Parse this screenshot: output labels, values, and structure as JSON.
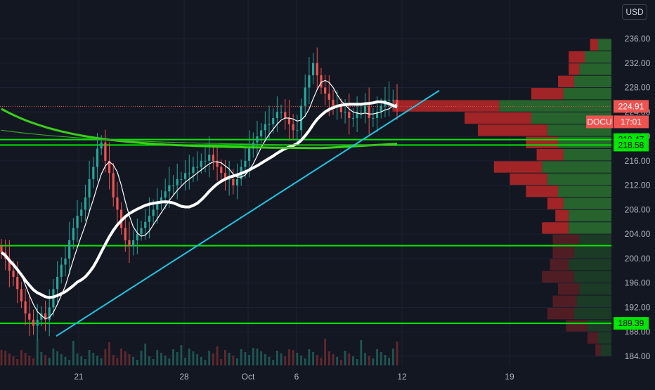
{
  "chart_data": {
    "type": "candlestick",
    "symbol": "DOCU",
    "currency": "USD",
    "last_price": 224.91,
    "countdown": "17:01",
    "y_ticks": [
      236,
      232,
      228,
      224,
      220,
      216,
      212,
      208,
      204,
      200,
      196,
      192,
      188,
      184
    ],
    "y_tick_labels": [
      "236.00",
      "232.00",
      "228.00",
      "224.00",
      "220.00",
      "216.00",
      "212.00",
      "208.00",
      "204.00",
      "200.00",
      "196.00",
      "192.00",
      "188.00",
      "184.00"
    ],
    "x_ticks": [
      "21",
      "28",
      "Oct",
      "6",
      "12",
      "19"
    ],
    "ylim": [
      182.5,
      238
    ],
    "closes": [
      201,
      200,
      198,
      197,
      195,
      193,
      191,
      190,
      189,
      190,
      191,
      190,
      192,
      195,
      197,
      199,
      200,
      203,
      205,
      207,
      208,
      210,
      213,
      215,
      218,
      219,
      216,
      214,
      210,
      208,
      205,
      203,
      202,
      203,
      204,
      205,
      206,
      207,
      208,
      209,
      210,
      211,
      212,
      212,
      213,
      213,
      214,
      214,
      215,
      215,
      216,
      216,
      217,
      216,
      215,
      214,
      213,
      213,
      212,
      213,
      215,
      216,
      218,
      219,
      220,
      221,
      222,
      222,
      223,
      224,
      224,
      223,
      222,
      221,
      221,
      225,
      228,
      230,
      232,
      230,
      228,
      227,
      226,
      225,
      225,
      224,
      224,
      223,
      223,
      224,
      224,
      225,
      223,
      223,
      224,
      225,
      226,
      226,
      226,
      225
    ],
    "price_levels": [
      {
        "label": "219.47",
        "value": 219.47,
        "color": "#00e600"
      },
      {
        "label": "218.58",
        "value": 218.58,
        "color": "#00e600"
      },
      {
        "label": "189.39",
        "value": 189.39,
        "color": "#00e600"
      },
      {
        "value": 202.1,
        "color": "#00e600"
      }
    ],
    "volume_profile": [
      {
        "price": 235,
        "buy": 0.5,
        "sell": 0.3
      },
      {
        "price": 233,
        "buy": 1.0,
        "sell": 0.6
      },
      {
        "price": 231,
        "buy": 1.2,
        "sell": 0.4
      },
      {
        "price": 229,
        "buy": 1.4,
        "sell": 0.6
      },
      {
        "price": 227,
        "buy": 1.8,
        "sell": 1.2
      },
      {
        "price": 225,
        "buy": 4.2,
        "sell": 4.0
      },
      {
        "price": 223,
        "buy": 3.0,
        "sell": 2.5
      },
      {
        "price": 221,
        "buy": 2.4,
        "sell": 2.6
      },
      {
        "price": 219,
        "buy": 2.0,
        "sell": 1.2
      },
      {
        "price": 217,
        "buy": 1.8,
        "sell": 1.0
      },
      {
        "price": 215,
        "buy": 2.6,
        "sell": 1.8
      },
      {
        "price": 213,
        "buy": 2.4,
        "sell": 1.4
      },
      {
        "price": 211,
        "buy": 2.0,
        "sell": 1.2
      },
      {
        "price": 209,
        "buy": 1.8,
        "sell": 0.6
      },
      {
        "price": 207,
        "buy": 1.6,
        "sell": 0.5
      },
      {
        "price": 205,
        "buy": 1.6,
        "sell": 1.0
      },
      {
        "price": 203,
        "buy": 1.2,
        "sell": 1.0
      },
      {
        "price": 201,
        "buy": 1.4,
        "sell": 0.8
      },
      {
        "price": 199,
        "buy": 1.6,
        "sell": 0.7
      },
      {
        "price": 197,
        "buy": 1.4,
        "sell": 1.2
      },
      {
        "price": 195,
        "buy": 1.2,
        "sell": 0.8
      },
      {
        "price": 193,
        "buy": 1.3,
        "sell": 0.9
      },
      {
        "price": 191,
        "buy": 1.4,
        "sell": 1.0
      },
      {
        "price": 189,
        "buy": 0.9,
        "sell": 0.8
      },
      {
        "price": 187,
        "buy": 0.5,
        "sell": 0.4
      },
      {
        "price": 185,
        "buy": 0.4,
        "sell": 0.2
      }
    ]
  }
}
